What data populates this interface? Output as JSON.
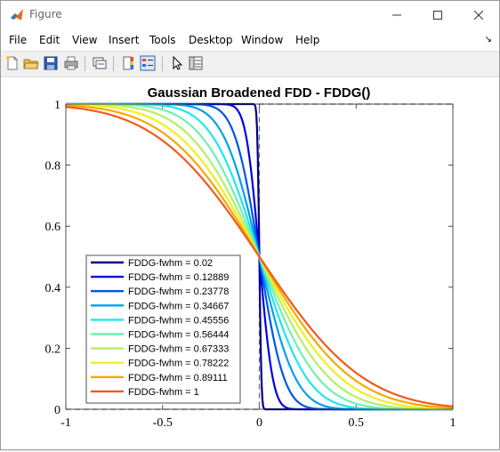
{
  "window": {
    "title": "Figure"
  },
  "menu": [
    "File",
    "Edit",
    "View",
    "Insert",
    "Tools",
    "Desktop",
    "Window",
    "Help"
  ],
  "chart_data": {
    "type": "line",
    "title": "Gaussian Broadened FDD - FDDG()",
    "xlabel": "",
    "ylabel": "",
    "xlim": [
      -1,
      1
    ],
    "ylim": [
      0,
      1
    ],
    "xticks": [
      "-1",
      "-0.5",
      "0",
      "0.5",
      "1"
    ],
    "yticks": [
      "0",
      "0.2",
      "0.4",
      "0.6",
      "0.8",
      "1"
    ],
    "legend_position": "bottom-left",
    "reference_line": {
      "style": "dashed",
      "color": "#6e6e6e",
      "x": [
        -1,
        0,
        0,
        1
      ],
      "y": [
        0,
        0,
        1,
        1
      ]
    },
    "function": "y = 0.5 * erfc(x / (fwhm / (2*sqrt(2*ln2))) / sqrt(2))",
    "series": [
      {
        "name": "FDDG-fwhm = 0.02",
        "fwhm": 0.02,
        "color": "#00008c"
      },
      {
        "name": "FDDG-fwhm = 0.12889",
        "fwhm": 0.12889,
        "color": "#0000e6"
      },
      {
        "name": "FDDG-fwhm = 0.23778",
        "fwhm": 0.23778,
        "color": "#0055e6"
      },
      {
        "name": "FDDG-fwhm = 0.34667",
        "fwhm": 0.34667,
        "color": "#00a0f0"
      },
      {
        "name": "FDDG-fwhm = 0.45556",
        "fwhm": 0.45556,
        "color": "#1ee6f0"
      },
      {
        "name": "FDDG-fwhm = 0.56444",
        "fwhm": 0.56444,
        "color": "#6ef0b4"
      },
      {
        "name": "FDDG-fwhm = 0.67333",
        "fwhm": 0.67333,
        "color": "#b4f064"
      },
      {
        "name": "FDDG-fwhm = 0.78222",
        "fwhm": 0.78222,
        "color": "#f0f01e"
      },
      {
        "name": "FDDG-fwhm = 0.89111",
        "fwhm": 0.89111,
        "color": "#f6a800"
      },
      {
        "name": "FDDG-fwhm = 1",
        "fwhm": 1,
        "color": "#f05a1e"
      }
    ]
  }
}
